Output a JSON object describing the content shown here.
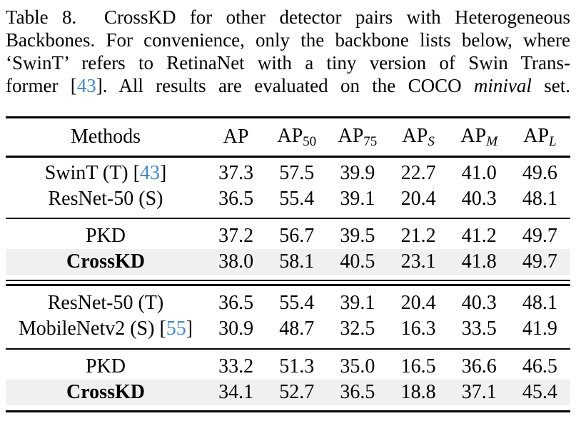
{
  "colors": {
    "citation_blue": "#4587c7",
    "row_highlight": "#f0f0f0",
    "text": "#000000"
  },
  "caption": {
    "lines": [
      {
        "segments": [
          {
            "text": "Table 8.  CrossKD for other detector pairs with Heterogeneous"
          }
        ]
      },
      {
        "segments": [
          {
            "text": "Backbones. For convenience, only the backbone lists below, where"
          }
        ]
      },
      {
        "segments": [
          {
            "text": "‘SwinT’ refers to RetinaNet with a tiny version of Swin Trans-"
          }
        ]
      },
      {
        "segments": [
          {
            "text": "former ["
          },
          {
            "text": "43",
            "style": "cite"
          },
          {
            "text": "]. All results are evaluated on the COCO "
          },
          {
            "text": "minival",
            "style": "italic"
          },
          {
            "text": " set."
          }
        ]
      }
    ]
  },
  "table": {
    "header": {
      "methods": "Methods",
      "columns": [
        {
          "base": "AP",
          "sub": "",
          "sub_style": "none"
        },
        {
          "base": "AP",
          "sub": "50",
          "sub_style": "number"
        },
        {
          "base": "AP",
          "sub": "75",
          "sub_style": "number"
        },
        {
          "base": "AP",
          "sub": "S",
          "sub_style": "italic"
        },
        {
          "base": "AP",
          "sub": "M",
          "sub_style": "italic"
        },
        {
          "base": "AP",
          "sub": "L",
          "sub_style": "italic"
        }
      ]
    },
    "sections": [
      {
        "name": "teachers-students-pair-1",
        "rows": [
          {
            "method": [
              {
                "text": "SwinT (T) ["
              },
              {
                "text": "43",
                "style": "cite"
              },
              {
                "text": "]"
              }
            ],
            "values": [
              "37.3",
              "57.5",
              "39.9",
              "22.7",
              "41.0",
              "49.6"
            ],
            "bold": false,
            "highlight": false
          },
          {
            "method": [
              {
                "text": "ResNet-50 (S)"
              }
            ],
            "values": [
              "36.5",
              "55.4",
              "39.1",
              "20.4",
              "40.3",
              "48.1"
            ],
            "bold": false,
            "highlight": false
          }
        ]
      },
      {
        "name": "distillation-pair-1",
        "rows": [
          {
            "method": [
              {
                "text": "PKD"
              }
            ],
            "values": [
              "37.2",
              "56.7",
              "39.5",
              "21.2",
              "41.2",
              "49.7"
            ],
            "bold": false,
            "highlight": false
          },
          {
            "method": [
              {
                "text": "CrossKD"
              }
            ],
            "values": [
              "38.0",
              "58.1",
              "40.5",
              "23.1",
              "41.8",
              "49.7"
            ],
            "bold": true,
            "highlight": true
          }
        ]
      },
      {
        "name": "teachers-students-pair-2",
        "rows": [
          {
            "method": [
              {
                "text": "ResNet-50 (T)"
              }
            ],
            "values": [
              "36.5",
              "55.4",
              "39.1",
              "20.4",
              "40.3",
              "48.1"
            ],
            "bold": false,
            "highlight": false
          },
          {
            "method": [
              {
                "text": "MobileNetv2 (S) ["
              },
              {
                "text": "55",
                "style": "cite"
              },
              {
                "text": "]"
              }
            ],
            "values": [
              "30.9",
              "48.7",
              "32.5",
              "16.3",
              "33.5",
              "41.9"
            ],
            "bold": false,
            "highlight": false
          }
        ]
      },
      {
        "name": "distillation-pair-2",
        "rows": [
          {
            "method": [
              {
                "text": "PKD"
              }
            ],
            "values": [
              "33.2",
              "51.3",
              "35.0",
              "16.5",
              "36.6",
              "46.5"
            ],
            "bold": false,
            "highlight": false
          },
          {
            "method": [
              {
                "text": "CrossKD"
              }
            ],
            "values": [
              "34.1",
              "52.7",
              "36.5",
              "18.8",
              "37.1",
              "45.4"
            ],
            "bold": true,
            "highlight": true
          }
        ]
      }
    ],
    "separators_after_sections": [
      "thin",
      "double",
      "thin",
      "none"
    ]
  }
}
